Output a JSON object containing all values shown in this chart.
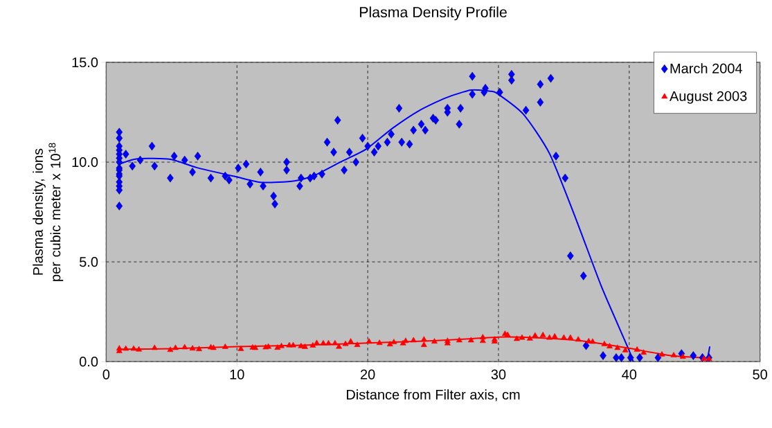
{
  "chart_data": {
    "type": "scatter",
    "title": "Plasma Density Profile",
    "xlabel": "Distance from Filter axis, cm",
    "ylabel": "Plasma density, ions per cubic meter  x 10$^{18}$",
    "xlim": [
      0,
      50
    ],
    "xticks": [
      0,
      10,
      20,
      30,
      40,
      50
    ],
    "ylim": [
      0,
      15
    ],
    "yticks": [
      {
        "value": 0,
        "label": "0.0"
      },
      {
        "value": 5,
        "label": "5.0"
      },
      {
        "value": 10,
        "label": "10.0"
      },
      {
        "value": 15,
        "label": "15.0"
      }
    ],
    "grid": true,
    "legend": "top right",
    "series": [
      {
        "name": "March 2004",
        "marker": "diamond",
        "color": "#0000ff",
        "x": [
          1.0,
          1.0,
          1.0,
          1.0,
          1.0,
          1.0,
          1.0,
          1.0,
          1.0,
          1.0,
          1.0,
          1.0,
          1.0,
          1.0,
          1.0,
          1.5,
          2.0,
          2.6,
          3.5,
          3.7,
          4.9,
          5.2,
          6.0,
          6.6,
          7.0,
          8.0,
          9.1,
          9.4,
          10.1,
          10.7,
          11.0,
          11.8,
          12.0,
          12.8,
          12.9,
          13.8,
          13.8,
          14.8,
          14.9,
          15.6,
          15.9,
          16.5,
          16.9,
          17.4,
          17.7,
          18.2,
          18.6,
          19.1,
          19.6,
          20.0,
          20.5,
          20.8,
          21.5,
          21.8,
          22.4,
          22.6,
          23.2,
          23.5,
          24.1,
          24.4,
          25.0,
          25.2,
          26.1,
          26.1,
          27.1,
          27.0,
          28.0,
          28.0,
          29.0,
          28.9,
          30.1,
          31.0,
          31.0,
          32.1,
          33.2,
          33.2,
          34.0,
          34.4,
          35.1,
          35.5,
          36.5,
          36.7,
          38.0,
          39.0,
          39.4,
          40.1,
          40.8,
          42.2,
          44.0,
          44.9,
          45.6,
          46.1
        ],
        "values": [
          11.5,
          11.2,
          10.8,
          10.6,
          10.4,
          10.2,
          10.0,
          9.7,
          9.6,
          9.4,
          9.3,
          9.0,
          8.8,
          8.6,
          7.8,
          10.4,
          9.8,
          10.1,
          10.8,
          9.8,
          9.2,
          10.3,
          10.1,
          9.5,
          10.3,
          9.2,
          9.3,
          9.1,
          9.7,
          9.9,
          8.9,
          9.5,
          8.8,
          8.3,
          7.9,
          10.0,
          9.6,
          8.8,
          9.2,
          9.2,
          9.3,
          9.4,
          11.0,
          10.5,
          12.1,
          9.6,
          10.5,
          10.0,
          11.2,
          10.8,
          10.5,
          10.8,
          11.0,
          11.4,
          12.7,
          11.0,
          10.9,
          11.6,
          11.9,
          11.6,
          12.2,
          12.1,
          12.7,
          12.5,
          12.7,
          11.9,
          14.3,
          13.4,
          13.7,
          13.5,
          13.5,
          14.4,
          14.1,
          12.6,
          13.9,
          13.0,
          14.2,
          10.3,
          9.2,
          5.3,
          4.3,
          0.8,
          0.3,
          0.2,
          0.2,
          0.2,
          0.2,
          0.2,
          0.4,
          0.3,
          0.2,
          0.2
        ]
      },
      {
        "name": "August 2003",
        "marker": "triangle",
        "color": "#ff0000",
        "x": [
          1.0,
          1.0,
          1.5,
          2.1,
          2.5,
          3.7,
          4.9,
          5.3,
          6.0,
          6.6,
          7.1,
          8.0,
          8.2,
          9.1,
          10.3,
          11.2,
          11.4,
          12.2,
          12.4,
          13.1,
          13.4,
          14.0,
          14.3,
          14.9,
          15.2,
          15.8,
          16.1,
          16.6,
          17.0,
          17.5,
          17.8,
          18.3,
          18.7,
          19.2,
          20.1,
          20.9,
          21.7,
          22.0,
          22.7,
          22.9,
          23.5,
          24.3,
          24.3,
          25.1,
          26.1,
          26.1,
          27.0,
          27.9,
          28.8,
          28.8,
          29.7,
          29.7,
          30.5,
          30.7,
          31.4,
          31.8,
          32.4,
          32.8,
          33.4,
          33.9,
          34.3,
          35.0,
          35.5,
          36.1,
          36.9,
          37.2,
          38.1,
          38.5,
          39.1,
          39.7,
          40.6,
          41.1,
          42.5,
          43.4,
          44.1,
          45.7,
          46.1
        ],
        "values": [
          0.65,
          0.52,
          0.64,
          0.64,
          0.6,
          0.68,
          0.58,
          0.68,
          0.71,
          0.65,
          0.62,
          0.71,
          0.68,
          0.73,
          0.63,
          0.7,
          0.68,
          0.71,
          0.74,
          0.69,
          0.77,
          0.81,
          0.81,
          0.77,
          0.73,
          0.8,
          0.92,
          0.91,
          0.91,
          0.91,
          0.74,
          0.88,
          1.0,
          0.83,
          1.0,
          0.93,
          0.86,
          0.97,
          0.91,
          1.03,
          1.06,
          1.1,
          0.83,
          1.0,
          1.03,
          0.91,
          1.06,
          1.06,
          1.21,
          1.03,
          1.1,
          1.0,
          1.38,
          1.33,
          1.13,
          1.19,
          1.15,
          1.3,
          1.32,
          1.19,
          1.25,
          1.19,
          1.19,
          1.1,
          1.01,
          0.99,
          0.87,
          0.76,
          0.68,
          0.56,
          0.59,
          0.44,
          0.35,
          0.31,
          0.24,
          0.13,
          0.13
        ]
      },
      {
        "type": "line",
        "marker": "none",
        "color": "#0000ff",
        "x": [
          1.0,
          2.4,
          4.9,
          6.9,
          9.9,
          11.9,
          14.4,
          15.9,
          17.9,
          19.9,
          21.9,
          23.9,
          25.9,
          27.9,
          29.4,
          29.9,
          31.9,
          33.9,
          35.9,
          37.9,
          39.9,
          40.3,
          43.0,
          45.95,
          46.16
        ],
        "values": [
          9.9,
          10.17,
          10.14,
          9.73,
          9.27,
          8.98,
          9.06,
          9.33,
          10.0,
          10.66,
          11.7,
          12.57,
          13.2,
          13.61,
          13.55,
          13.44,
          12.4,
          10.43,
          7.19,
          3.72,
          0.7,
          0.0,
          null,
          0.0,
          0.76
        ]
      },
      {
        "type": "line",
        "marker": "none",
        "color": "#ff0000",
        "x": [
          1.0,
          5.0,
          10.0,
          15.0,
          20.0,
          25.0,
          28.0,
          30.0,
          32.0,
          34.2,
          36.7,
          39.9,
          43.1,
          46.0
        ],
        "values": [
          0.62,
          0.65,
          0.75,
          0.82,
          0.93,
          1.05,
          1.15,
          1.23,
          1.22,
          1.15,
          1.01,
          0.68,
          0.31,
          0.18
        ]
      }
    ]
  }
}
